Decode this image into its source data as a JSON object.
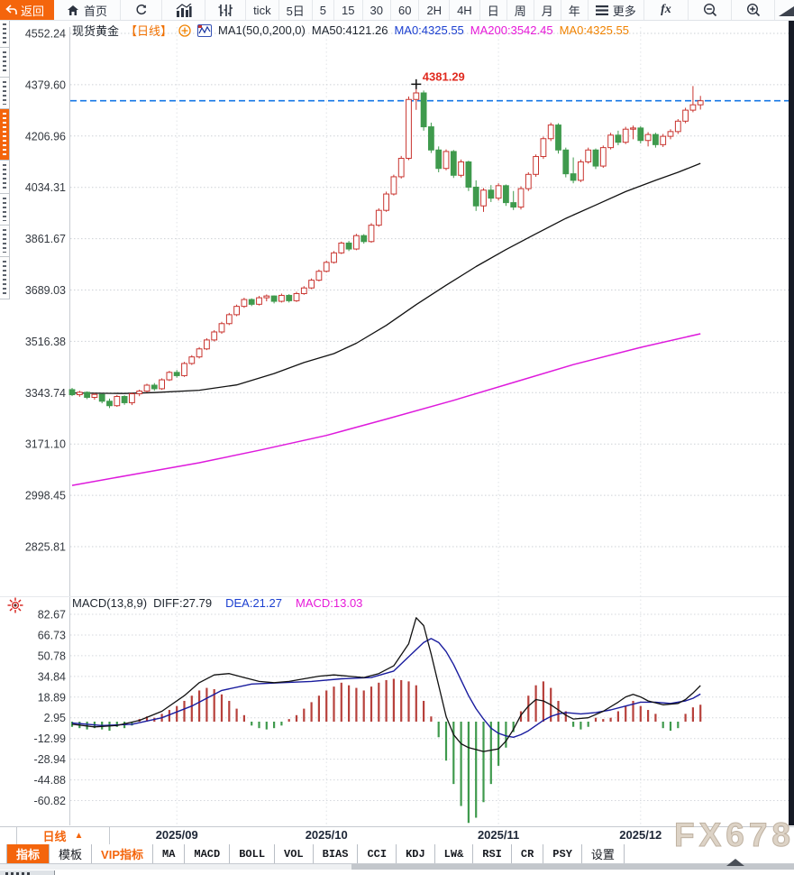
{
  "toolbar": {
    "back": "返回",
    "home": "首页",
    "tick": "tick",
    "periods": [
      "5日",
      "5",
      "15",
      "30",
      "60",
      "2H",
      "4H",
      "日",
      "周",
      "月",
      "年"
    ],
    "more": "更多",
    "fx": "fx"
  },
  "legend": {
    "symbol": "现货黄金",
    "timeframe": "【日线】",
    "ma_settings": "MA1(50,0,200,0)",
    "ma50": "MA50:4121.26",
    "ma0_blue": "MA0:4325.55",
    "ma200": "MA200:3542.45",
    "ma0_orange": "MA0:4325.55"
  },
  "macd_legend": {
    "title": "MACD(13,8,9)",
    "diff": "DIFF:27.79",
    "dea": "DEA:21.27",
    "macd": "MACD:13.03"
  },
  "xaxis": {
    "timeframe_button": "日线",
    "arrow": "▲"
  },
  "tabs": [
    {
      "label": "指标",
      "style": "active"
    },
    {
      "label": "模板",
      "style": ""
    },
    {
      "label": "VIP指标",
      "style": "vip"
    },
    {
      "label": "MA",
      "style": "mono"
    },
    {
      "label": "MACD",
      "style": "mono"
    },
    {
      "label": "BOLL",
      "style": "mono"
    },
    {
      "label": "VOL",
      "style": "mono"
    },
    {
      "label": "BIAS",
      "style": "mono"
    },
    {
      "label": "CCI",
      "style": "mono"
    },
    {
      "label": "KDJ",
      "style": "mono"
    },
    {
      "label": "LW&",
      "style": "mono"
    },
    {
      "label": "RSI",
      "style": "mono"
    },
    {
      "label": "CR",
      "style": "mono"
    },
    {
      "label": "PSY",
      "style": "mono"
    },
    {
      "label": "设置",
      "style": ""
    }
  ],
  "watermark": "FX678",
  "colors": {
    "accent_orange": "#f4650c",
    "up_candle": "#c9342f",
    "down_candle": "#3f9a4d",
    "ma50_line": "#111111",
    "ma200_line": "#de1adc",
    "current_price_line": "#1577e6",
    "dea_line": "#191c9e",
    "annotation_red": "#e02b20"
  },
  "chart_data": [
    {
      "type": "candlestick",
      "title": "现货黄金【日线】",
      "ylabel": "price",
      "y_ticks": [
        4552.24,
        4379.6,
        4206.96,
        4034.31,
        3861.67,
        3689.03,
        3516.38,
        3343.74,
        3171.1,
        2998.45,
        2825.81
      ],
      "x_ticks": [
        "2025/09",
        "2025/10",
        "2025/11",
        "2025/12"
      ],
      "x_tick_index": [
        14,
        34,
        57,
        76
      ],
      "current_price": 4325.55,
      "high_annotation": {
        "label": "4381.29",
        "value": 4381.29,
        "index": 46
      },
      "up_color": "#c9342f",
      "down_color": "#3f9a4d",
      "candles": [
        [
          3354,
          3360,
          3332,
          3337
        ],
        [
          3337,
          3350,
          3330,
          3345
        ],
        [
          3345,
          3348,
          3322,
          3328
        ],
        [
          3328,
          3342,
          3320,
          3338
        ],
        [
          3338,
          3340,
          3308,
          3315
        ],
        [
          3315,
          3324,
          3292,
          3300
        ],
        [
          3300,
          3336,
          3296,
          3331
        ],
        [
          3331,
          3335,
          3303,
          3310
        ],
        [
          3310,
          3344,
          3302,
          3340
        ],
        [
          3340,
          3354,
          3332,
          3349
        ],
        [
          3349,
          3374,
          3345,
          3369
        ],
        [
          3369,
          3376,
          3350,
          3357
        ],
        [
          3357,
          3392,
          3353,
          3387
        ],
        [
          3387,
          3417,
          3383,
          3412
        ],
        [
          3412,
          3420,
          3394,
          3401
        ],
        [
          3401,
          3447,
          3397,
          3442
        ],
        [
          3442,
          3470,
          3437,
          3464
        ],
        [
          3464,
          3497,
          3459,
          3491
        ],
        [
          3491,
          3527,
          3487,
          3521
        ],
        [
          3521,
          3554,
          3516,
          3548
        ],
        [
          3548,
          3582,
          3542,
          3576
        ],
        [
          3576,
          3612,
          3571,
          3606
        ],
        [
          3606,
          3640,
          3601,
          3634
        ],
        [
          3634,
          3663,
          3629,
          3657
        ],
        [
          3657,
          3661,
          3635,
          3641
        ],
        [
          3641,
          3669,
          3637,
          3663
        ],
        [
          3663,
          3674,
          3651,
          3669
        ],
        [
          3669,
          3671,
          3644,
          3651
        ],
        [
          3651,
          3677,
          3647,
          3671
        ],
        [
          3671,
          3675,
          3647,
          3653
        ],
        [
          3653,
          3683,
          3649,
          3677
        ],
        [
          3677,
          3702,
          3673,
          3696
        ],
        [
          3696,
          3728,
          3692,
          3722
        ],
        [
          3722,
          3758,
          3718,
          3752
        ],
        [
          3752,
          3788,
          3748,
          3782
        ],
        [
          3782,
          3820,
          3778,
          3814
        ],
        [
          3814,
          3852,
          3810,
          3847
        ],
        [
          3847,
          3854,
          3820,
          3827
        ],
        [
          3827,
          3878,
          3823,
          3872
        ],
        [
          3872,
          3877,
          3845,
          3852
        ],
        [
          3852,
          3914,
          3848,
          3907
        ],
        [
          3907,
          3964,
          3902,
          3957
        ],
        [
          3957,
          4020,
          3952,
          4012
        ],
        [
          4012,
          4077,
          4007,
          4070
        ],
        [
          4070,
          4140,
          4064,
          4132
        ],
        [
          4132,
          4340,
          4126,
          4330
        ],
        [
          4330,
          4381.29,
          4295,
          4352
        ],
        [
          4352,
          4360,
          4225,
          4238
        ],
        [
          4238,
          4252,
          4150,
          4160
        ],
        [
          4160,
          4172,
          4085,
          4098
        ],
        [
          4098,
          4162,
          4092,
          4155
        ],
        [
          4155,
          4160,
          4066,
          4075
        ],
        [
          4075,
          4128,
          4068,
          4120
        ],
        [
          4120,
          4124,
          4022,
          4035
        ],
        [
          4035,
          4058,
          3955,
          3972
        ],
        [
          3972,
          4032,
          3952,
          4025
        ],
        [
          4025,
          4042,
          3985,
          3998
        ],
        [
          3998,
          4048,
          3990,
          4040
        ],
        [
          4040,
          4044,
          3972,
          3983
        ],
        [
          3983,
          4022,
          3958,
          3968
        ],
        [
          3968,
          4038,
          3960,
          4030
        ],
        [
          4030,
          4085,
          4022,
          4078
        ],
        [
          4078,
          4145,
          4070,
          4138
        ],
        [
          4138,
          4205,
          4130,
          4198
        ],
        [
          4198,
          4252,
          4190,
          4244
        ],
        [
          4244,
          4250,
          4148,
          4160
        ],
        [
          4160,
          4168,
          4068,
          4080
        ],
        [
          4080,
          4135,
          4048,
          4058
        ],
        [
          4058,
          4128,
          4052,
          4120
        ],
        [
          4120,
          4168,
          4114,
          4160
        ],
        [
          4160,
          4165,
          4096,
          4106
        ],
        [
          4106,
          4175,
          4100,
          4168
        ],
        [
          4168,
          4218,
          4162,
          4210
        ],
        [
          4210,
          4225,
          4176,
          4186
        ],
        [
          4186,
          4238,
          4180,
          4230
        ],
        [
          4230,
          4242,
          4196,
          4234
        ],
        [
          4234,
          4240,
          4182,
          4192
        ],
        [
          4192,
          4220,
          4172,
          4212
        ],
        [
          4212,
          4218,
          4168,
          4178
        ],
        [
          4178,
          4214,
          4170,
          4206
        ],
        [
          4206,
          4230,
          4196,
          4222
        ],
        [
          4222,
          4264,
          4214,
          4257
        ],
        [
          4257,
          4302,
          4250,
          4294
        ],
        [
          4294,
          4375,
          4287,
          4312
        ],
        [
          4312,
          4342,
          4296,
          4325.55
        ]
      ],
      "ma50_points": [
        [
          0,
          3343
        ],
        [
          7,
          3341
        ],
        [
          11,
          3344
        ],
        [
          17,
          3352
        ],
        [
          22,
          3370
        ],
        [
          27,
          3408
        ],
        [
          31,
          3445
        ],
        [
          35,
          3475
        ],
        [
          38,
          3510
        ],
        [
          42,
          3570
        ],
        [
          46,
          3640
        ],
        [
          50,
          3705
        ],
        [
          54,
          3768
        ],
        [
          58,
          3825
        ],
        [
          62,
          3878
        ],
        [
          66,
          3930
        ],
        [
          70,
          3975
        ],
        [
          74,
          4020
        ],
        [
          78,
          4058
        ],
        [
          81,
          4085
        ],
        [
          84,
          4115
        ]
      ],
      "ma200_points": [
        [
          0,
          3032
        ],
        [
          8,
          3068
        ],
        [
          17,
          3108
        ],
        [
          25,
          3150
        ],
        [
          34,
          3200
        ],
        [
          42,
          3255
        ],
        [
          51,
          3318
        ],
        [
          59,
          3378
        ],
        [
          67,
          3438
        ],
        [
          76,
          3496
        ],
        [
          84,
          3542
        ]
      ]
    },
    {
      "type": "macd",
      "title": "MACD(13,8,9)",
      "y_ticks": [
        82.67,
        66.73,
        50.78,
        34.84,
        18.89,
        2.95,
        -12.99,
        -28.94,
        -44.88,
        -60.82
      ],
      "diff": 27.79,
      "dea": 21.27,
      "macd": 13.03,
      "hist": [
        -4,
        -5,
        -6,
        -5,
        -6,
        -7,
        -4,
        -5,
        -3,
        2,
        4,
        3,
        6,
        9,
        12,
        16,
        20,
        24,
        26,
        25,
        21,
        16,
        10,
        5,
        -3,
        -5,
        -6,
        -5,
        -3,
        2,
        5,
        10,
        15,
        20,
        24,
        27,
        30,
        28,
        26,
        24,
        27,
        30,
        32,
        33,
        32,
        31,
        28,
        16,
        4,
        -12,
        -30,
        -48,
        -65,
        -78,
        -74,
        -62,
        -48,
        -34,
        -20,
        -8,
        8,
        20,
        28,
        31,
        26,
        16,
        8,
        -4,
        -6,
        -4,
        3,
        2,
        3,
        8,
        12,
        16,
        12,
        9,
        6,
        -5,
        -7,
        -5,
        6,
        11,
        13.03
      ],
      "diff_points": [
        [
          0,
          -2
        ],
        [
          3,
          -4
        ],
        [
          6,
          -3
        ],
        [
          9,
          1
        ],
        [
          12,
          8
        ],
        [
          15,
          20
        ],
        [
          17,
          30
        ],
        [
          19,
          36
        ],
        [
          21,
          37
        ],
        [
          23,
          34
        ],
        [
          25,
          31
        ],
        [
          27,
          30
        ],
        [
          29,
          31
        ],
        [
          31,
          33
        ],
        [
          33,
          35
        ],
        [
          35,
          36
        ],
        [
          37,
          35
        ],
        [
          39,
          34
        ],
        [
          41,
          37
        ],
        [
          43,
          43
        ],
        [
          45,
          60
        ],
        [
          46,
          80
        ],
        [
          47,
          74
        ],
        [
          48,
          52
        ],
        [
          49,
          28
        ],
        [
          50,
          4
        ],
        [
          51,
          -10
        ],
        [
          52,
          -17
        ],
        [
          53,
          -20
        ],
        [
          55,
          -23
        ],
        [
          57,
          -21
        ],
        [
          58,
          -15
        ],
        [
          59,
          -6
        ],
        [
          60,
          5
        ],
        [
          61,
          12
        ],
        [
          62,
          17
        ],
        [
          63,
          16
        ],
        [
          64,
          13
        ],
        [
          65,
          9
        ],
        [
          66,
          5
        ],
        [
          67,
          2
        ],
        [
          69,
          3
        ],
        [
          71,
          8
        ],
        [
          73,
          15
        ],
        [
          74,
          19
        ],
        [
          75,
          21
        ],
        [
          76,
          19
        ],
        [
          77,
          16
        ],
        [
          79,
          13
        ],
        [
          81,
          14
        ],
        [
          82,
          17
        ],
        [
          83,
          22
        ],
        [
          84,
          27.79
        ]
      ],
      "dea_points": [
        [
          0,
          -1
        ],
        [
          4,
          -3
        ],
        [
          8,
          -2
        ],
        [
          12,
          3
        ],
        [
          16,
          12
        ],
        [
          20,
          24
        ],
        [
          24,
          29
        ],
        [
          28,
          30
        ],
        [
          32,
          31
        ],
        [
          36,
          33
        ],
        [
          40,
          34
        ],
        [
          43,
          39
        ],
        [
          45,
          50
        ],
        [
          47,
          61
        ],
        [
          48,
          64
        ],
        [
          49,
          61
        ],
        [
          50,
          54
        ],
        [
          51,
          44
        ],
        [
          52,
          32
        ],
        [
          53,
          20
        ],
        [
          54,
          10
        ],
        [
          55,
          2
        ],
        [
          56,
          -5
        ],
        [
          57,
          -9
        ],
        [
          58,
          -11
        ],
        [
          59,
          -12
        ],
        [
          60,
          -10
        ],
        [
          61,
          -7
        ],
        [
          62,
          -3
        ],
        [
          63,
          1
        ],
        [
          64,
          4
        ],
        [
          65,
          6
        ],
        [
          66,
          7
        ],
        [
          68,
          6
        ],
        [
          70,
          7
        ],
        [
          72,
          9
        ],
        [
          74,
          12
        ],
        [
          76,
          15
        ],
        [
          78,
          15
        ],
        [
          80,
          14
        ],
        [
          82,
          16
        ],
        [
          83,
          18
        ],
        [
          84,
          21.27
        ]
      ]
    }
  ]
}
